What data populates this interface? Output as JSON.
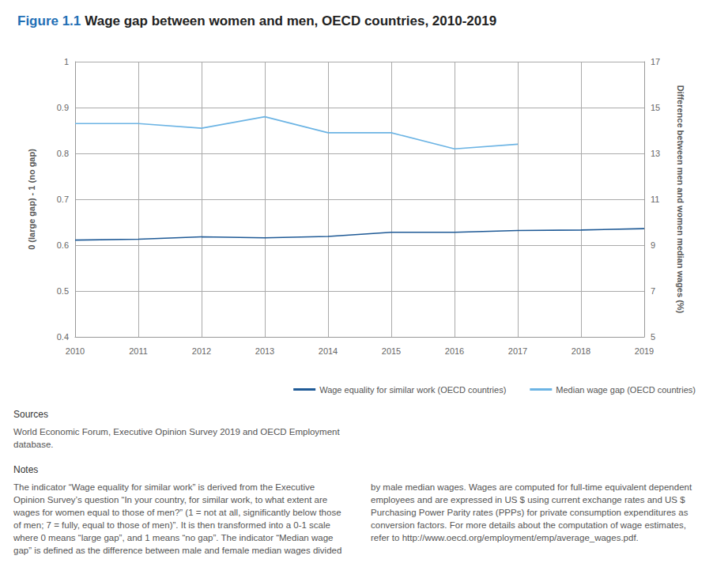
{
  "chart_data": {
    "type": "line",
    "title": {
      "label": "Figure 1.1",
      "text": "Wage gap between women and men, OECD countries, 2010-2019"
    },
    "categories": [
      "2010",
      "2011",
      "2012",
      "2013",
      "2014",
      "2015",
      "2016",
      "2017",
      "2018",
      "2019"
    ],
    "series": [
      {
        "name": "Wage equality for similar work (OECD countries)",
        "color": "#1f5a96",
        "values": [
          0.611,
          0.613,
          0.618,
          0.616,
          0.619,
          0.628,
          0.628,
          0.632,
          0.633,
          0.636
        ]
      },
      {
        "name": "Median wage gap (OECD countries)",
        "color": "#6cb4e4",
        "axis": "y2",
        "values": [
          14.3,
          14.3,
          14.1,
          14.6,
          13.9,
          13.9,
          13.2,
          13.4,
          null,
          null
        ]
      }
    ],
    "ylabel": "0 (large gap) - 1 (no gap)",
    "y2label": "Difference between men and women median wages (%)",
    "ylim": [
      0.4,
      1
    ],
    "yticks": [
      0.4,
      0.5,
      0.6,
      0.7,
      0.8,
      0.9,
      1
    ],
    "y2lim": [
      5,
      17
    ],
    "y2ticks": [
      5,
      7,
      9,
      11,
      13,
      15,
      17
    ],
    "grid": true,
    "legend": "bottom-right",
    "sources": {
      "heading": "Sources",
      "text": "World Economic Forum, Executive Opinion Survey 2019 and OECD Employment database."
    },
    "notes": {
      "heading": "Notes",
      "text": "The indicator “Wage equality for similar work” is derived from the Executive Opinion Survey’s question “In your country, for similar work, to what extent are wages for women equal to those of men?” (1 = not at all, significantly below those of men; 7 = fully, equal to those of men)”. It is then transformed into a 0-1 scale where 0 means “large gap”, and 1 means “no gap”. The indicator “Median wage gap” is defined as the difference between male and female median wages divided by male median wages. Wages are computed for full-time equivalent dependent employees and are expressed in US $ using current exchange rates and US $ Purchasing Power Parity rates (PPPs) for private consumption expenditures as conversion factors. For more details about the computation of wage estimates, refer to http://www.oecd.org/employment/emp/average_wages.pdf."
    }
  }
}
